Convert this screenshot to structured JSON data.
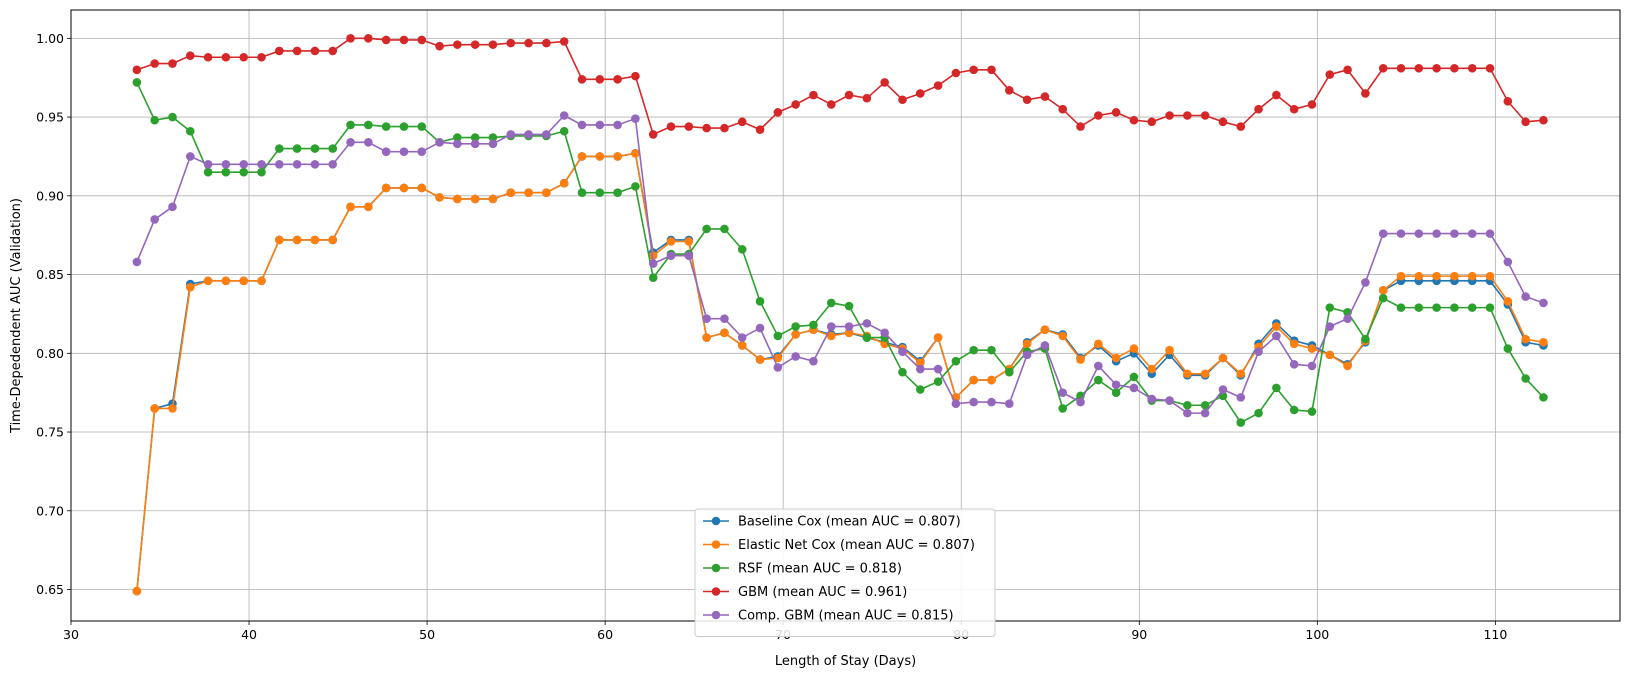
{
  "chart_data": {
    "type": "line",
    "title": "",
    "xlabel": "Length of Stay (Days)",
    "ylabel": "Time-Depedendent AUC (Validation)",
    "xlim": [
      30,
      117
    ],
    "ylim": [
      0.63,
      1.018
    ],
    "xticks": [
      30,
      40,
      50,
      60,
      70,
      80,
      90,
      100,
      110
    ],
    "yticks": [
      0.65,
      0.7,
      0.75,
      0.8,
      0.85,
      0.9,
      0.95,
      1.0
    ],
    "xtick_labels": [
      "30",
      "40",
      "50",
      "60",
      "70",
      "80",
      "90",
      "100",
      "110"
    ],
    "ytick_labels": [
      "0.65",
      "0.70",
      "0.75",
      "0.80",
      "0.85",
      "0.90",
      "0.95",
      "1.00"
    ],
    "grid": true,
    "legend_position": "bottom-center",
    "x": [
      33.7,
      34.7,
      35.7,
      36.7,
      37.7,
      38.7,
      39.7,
      40.7,
      41.7,
      42.7,
      43.7,
      44.7,
      45.7,
      46.7,
      47.7,
      48.7,
      49.7,
      50.7,
      51.7,
      52.7,
      53.7,
      54.7,
      55.7,
      56.7,
      57.7,
      58.7,
      59.7,
      60.7,
      61.7,
      62.7,
      63.7,
      64.7,
      65.7,
      66.7,
      67.7,
      68.7,
      69.7,
      70.7,
      71.7,
      72.7,
      73.7,
      74.7,
      75.7,
      76.7,
      77.7,
      78.7,
      79.7,
      80.7,
      81.7,
      82.7,
      83.7,
      84.7,
      85.7,
      86.7,
      87.7,
      88.7,
      89.7,
      90.7,
      91.7,
      92.7,
      93.7,
      94.7,
      95.7,
      96.7,
      97.7,
      98.7,
      99.7,
      100.7,
      101.7,
      102.7,
      103.7,
      104.7,
      105.7,
      106.7,
      107.7,
      108.7,
      109.7,
      110.7,
      111.7,
      112.7
    ],
    "series": [
      {
        "name": "Baseline Cox (mean AUC = 0.807)",
        "color": "#1f77b4",
        "values": [
          0.649,
          0.765,
          0.768,
          0.844,
          0.846,
          0.846,
          0.846,
          0.846,
          0.872,
          0.872,
          0.872,
          0.872,
          0.893,
          0.893,
          0.905,
          0.905,
          0.905,
          0.899,
          0.898,
          0.898,
          0.898,
          0.902,
          0.902,
          0.902,
          0.908,
          0.925,
          0.925,
          0.925,
          0.927,
          0.864,
          0.872,
          0.872,
          0.81,
          0.813,
          0.805,
          0.796,
          0.798,
          0.812,
          0.815,
          0.812,
          0.813,
          0.81,
          0.807,
          0.804,
          0.795,
          0.81,
          0.772,
          0.783,
          0.783,
          0.79,
          0.807,
          0.815,
          0.812,
          0.797,
          0.805,
          0.795,
          0.8,
          0.787,
          0.799,
          0.786,
          0.786,
          0.797,
          0.786,
          0.806,
          0.819,
          0.808,
          0.805,
          0.799,
          0.793,
          0.807,
          0.84,
          0.846,
          0.846,
          0.846,
          0.846,
          0.846,
          0.846,
          0.831,
          0.807,
          0.805
        ]
      },
      {
        "name": "Elastic Net Cox (mean AUC = 0.807)",
        "color": "#ff7f0e",
        "values": [
          0.649,
          0.765,
          0.765,
          0.842,
          0.846,
          0.846,
          0.846,
          0.846,
          0.872,
          0.872,
          0.872,
          0.872,
          0.893,
          0.893,
          0.905,
          0.905,
          0.905,
          0.899,
          0.898,
          0.898,
          0.898,
          0.902,
          0.902,
          0.902,
          0.908,
          0.925,
          0.925,
          0.925,
          0.927,
          0.862,
          0.871,
          0.871,
          0.81,
          0.813,
          0.805,
          0.796,
          0.797,
          0.812,
          0.815,
          0.811,
          0.813,
          0.811,
          0.806,
          0.803,
          0.794,
          0.81,
          0.772,
          0.783,
          0.783,
          0.79,
          0.806,
          0.815,
          0.811,
          0.796,
          0.806,
          0.797,
          0.803,
          0.79,
          0.802,
          0.787,
          0.787,
          0.797,
          0.787,
          0.804,
          0.817,
          0.806,
          0.803,
          0.799,
          0.792,
          0.808,
          0.84,
          0.849,
          0.849,
          0.849,
          0.849,
          0.849,
          0.849,
          0.833,
          0.809,
          0.807
        ]
      },
      {
        "name": "RSF (mean AUC = 0.818)",
        "color": "#2ca02c",
        "values": [
          0.972,
          0.948,
          0.95,
          0.941,
          0.915,
          0.915,
          0.915,
          0.915,
          0.93,
          0.93,
          0.93,
          0.93,
          0.945,
          0.945,
          0.944,
          0.944,
          0.944,
          0.934,
          0.937,
          0.937,
          0.937,
          0.938,
          0.938,
          0.938,
          0.941,
          0.902,
          0.902,
          0.902,
          0.906,
          0.848,
          0.863,
          0.863,
          0.879,
          0.879,
          0.866,
          0.833,
          0.811,
          0.817,
          0.818,
          0.832,
          0.83,
          0.81,
          0.81,
          0.788,
          0.777,
          0.782,
          0.795,
          0.802,
          0.802,
          0.788,
          0.801,
          0.803,
          0.765,
          0.773,
          0.783,
          0.775,
          0.785,
          0.77,
          0.77,
          0.767,
          0.767,
          0.773,
          0.756,
          0.762,
          0.778,
          0.764,
          0.763,
          0.829,
          0.826,
          0.809,
          0.835,
          0.829,
          0.829,
          0.829,
          0.829,
          0.829,
          0.829,
          0.803,
          0.784,
          0.772
        ]
      },
      {
        "name": "GBM (mean AUC = 0.961)",
        "color": "#d62728",
        "values": [
          0.98,
          0.984,
          0.984,
          0.989,
          0.988,
          0.988,
          0.988,
          0.988,
          0.992,
          0.992,
          0.992,
          0.992,
          1.0,
          1.0,
          0.999,
          0.999,
          0.999,
          0.995,
          0.996,
          0.996,
          0.996,
          0.997,
          0.997,
          0.997,
          0.998,
          0.974,
          0.974,
          0.974,
          0.976,
          0.939,
          0.944,
          0.944,
          0.943,
          0.943,
          0.947,
          0.942,
          0.953,
          0.958,
          0.964,
          0.958,
          0.964,
          0.962,
          0.972,
          0.961,
          0.965,
          0.97,
          0.978,
          0.98,
          0.98,
          0.967,
          0.961,
          0.963,
          0.955,
          0.944,
          0.951,
          0.953,
          0.948,
          0.947,
          0.951,
          0.951,
          0.951,
          0.947,
          0.944,
          0.955,
          0.964,
          0.955,
          0.958,
          0.977,
          0.98,
          0.965,
          0.981,
          0.981,
          0.981,
          0.981,
          0.981,
          0.981,
          0.981,
          0.96,
          0.947,
          0.948
        ]
      },
      {
        "name": "Comp. GBM (mean AUC = 0.815)",
        "color": "#9467bd",
        "values": [
          0.858,
          0.885,
          0.893,
          0.925,
          0.92,
          0.92,
          0.92,
          0.92,
          0.92,
          0.92,
          0.92,
          0.92,
          0.934,
          0.934,
          0.928,
          0.928,
          0.928,
          0.934,
          0.933,
          0.933,
          0.933,
          0.939,
          0.939,
          0.939,
          0.951,
          0.945,
          0.945,
          0.945,
          0.949,
          0.857,
          0.862,
          0.862,
          0.822,
          0.822,
          0.81,
          0.816,
          0.791,
          0.798,
          0.795,
          0.817,
          0.817,
          0.819,
          0.813,
          0.801,
          0.79,
          0.79,
          0.768,
          0.769,
          0.769,
          0.768,
          0.799,
          0.805,
          0.775,
          0.769,
          0.792,
          0.78,
          0.778,
          0.771,
          0.77,
          0.762,
          0.762,
          0.777,
          0.772,
          0.801,
          0.811,
          0.793,
          0.792,
          0.817,
          0.822,
          0.845,
          0.876,
          0.876,
          0.876,
          0.876,
          0.876,
          0.876,
          0.876,
          0.858,
          0.836,
          0.832
        ]
      }
    ]
  }
}
